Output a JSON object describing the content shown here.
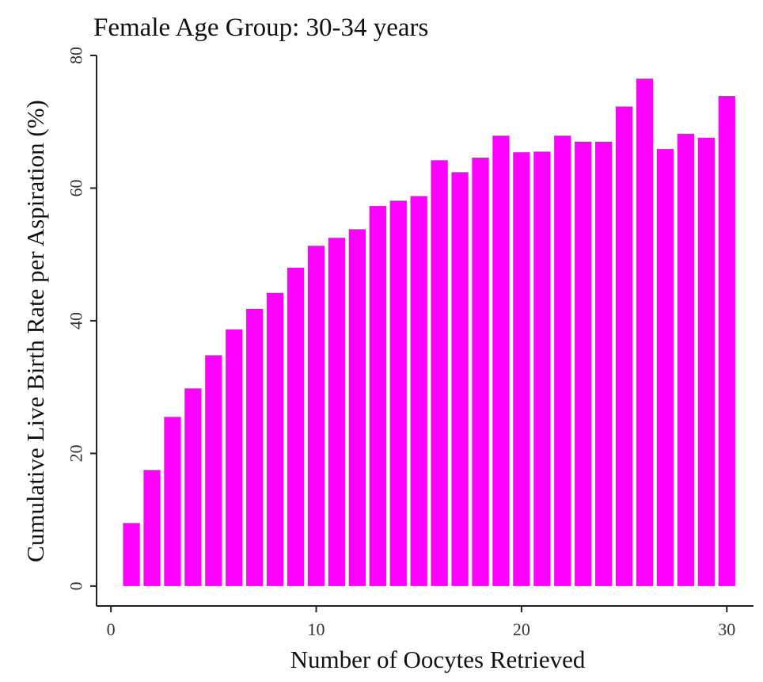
{
  "chart_data": {
    "type": "bar",
    "title": "Female Age Group: 30-34 years",
    "xlabel": "Number of Oocytes Retrieved",
    "ylabel": "Cumulative Live Birth Rate per Aspiration (%)",
    "x": [
      1,
      2,
      3,
      4,
      5,
      6,
      7,
      8,
      9,
      10,
      11,
      12,
      13,
      14,
      15,
      16,
      17,
      18,
      19,
      20,
      21,
      22,
      23,
      24,
      25,
      26,
      27,
      28,
      29,
      30
    ],
    "values": [
      9.5,
      17.5,
      25.5,
      29.8,
      34.8,
      38.7,
      41.8,
      44.2,
      48.0,
      51.3,
      52.5,
      53.8,
      57.3,
      58.1,
      58.8,
      64.2,
      62.4,
      64.6,
      67.9,
      65.4,
      65.5,
      67.9,
      67.0,
      67.0,
      72.3,
      76.5,
      65.9,
      68.2,
      67.6,
      73.9
    ],
    "xlim": [
      -0.7,
      31.3
    ],
    "ylim": [
      -3,
      80
    ],
    "xticks": [
      0,
      10,
      20,
      30
    ],
    "xtick_labels": [
      "0",
      "10",
      "20",
      "30"
    ],
    "yticks": [
      0,
      20,
      40,
      60,
      80
    ],
    "ytick_labels": [
      "0",
      "20",
      "40",
      "60",
      "80"
    ],
    "bar_color": "#ff00ff",
    "grid": false,
    "legend": "none"
  }
}
